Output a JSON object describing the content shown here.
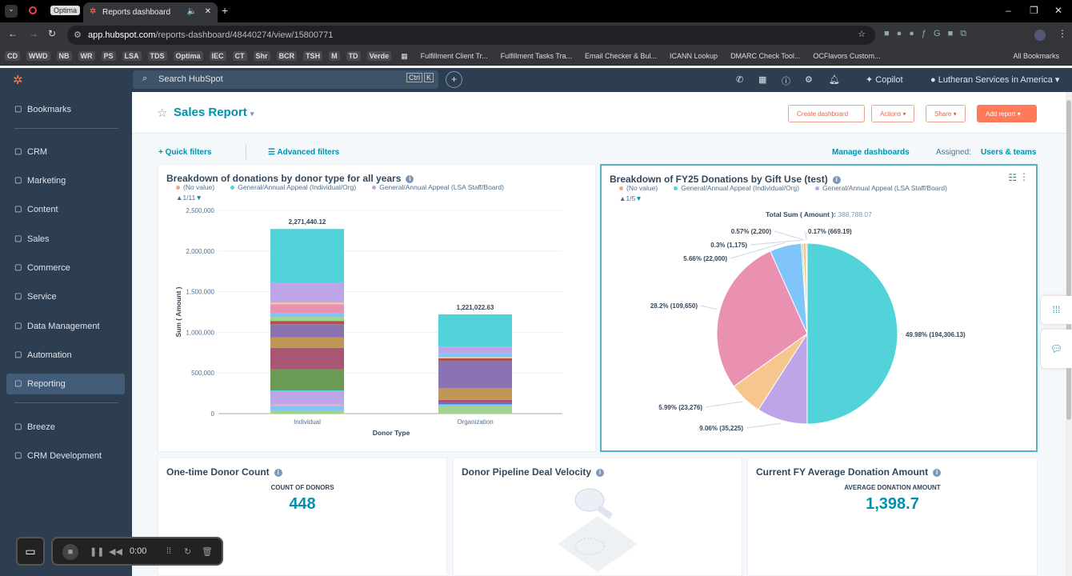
{
  "browser": {
    "group_label": "Optima",
    "tab_title": "Reports dashboard",
    "url_host": "app.hubspot.com",
    "url_path": "/reports-dashboard/48440274/view/15800771",
    "bookmarks": [
      "CD",
      "WWD",
      "NB",
      "WR",
      "PS",
      "LSA",
      "TDS",
      "Optima",
      "IEC",
      "CT",
      "Shr",
      "BCR",
      "TSH",
      "M",
      "TD",
      "Verde"
    ],
    "bookmark_links": [
      "Fulfillment Client Tr...",
      "Fulfillment Tasks Tra...",
      "Email Checker & Bul...",
      "ICANN Lookup",
      "DMARC Check Tool...",
      "OCFlavors Custom..."
    ],
    "all_bookmarks": "All Bookmarks"
  },
  "topnav": {
    "search_placeholder": "Search HubSpot",
    "kbd1": "Ctrl",
    "kbd2": "K",
    "copilot": "Copilot",
    "account": "Lutheran Services in America"
  },
  "sidebar": {
    "items": [
      {
        "label": "Bookmarks",
        "icon": "bookmark-icon"
      },
      {
        "label": "CRM",
        "icon": "crm-icon"
      },
      {
        "label": "Marketing",
        "icon": "megaphone-icon"
      },
      {
        "label": "Content",
        "icon": "content-icon"
      },
      {
        "label": "Sales",
        "icon": "sales-icon"
      },
      {
        "label": "Commerce",
        "icon": "commerce-icon"
      },
      {
        "label": "Service",
        "icon": "service-icon"
      },
      {
        "label": "Data Management",
        "icon": "database-icon"
      },
      {
        "label": "Automation",
        "icon": "automation-icon"
      },
      {
        "label": "Reporting",
        "icon": "chart-icon",
        "active": true
      },
      {
        "label": "Breeze",
        "icon": "sparkle-icon"
      },
      {
        "label": "CRM Development",
        "icon": "code-icon"
      }
    ]
  },
  "dashboard": {
    "title": "Sales Report",
    "create": "Create dashboard",
    "actions": "Actions",
    "share": "Share",
    "add_report": "Add report",
    "quick_filters": "Quick filters",
    "advanced_filters": "Advanced filters",
    "manage": "Manage dashboards",
    "assigned_label": "Assigned:",
    "assigned_value": "Users & teams"
  },
  "legend": [
    {
      "name": "(No value)",
      "color": "#f2a48c"
    },
    {
      "name": "General/Annual Appeal (Individual/Org)",
      "color": "#51d3d9"
    },
    {
      "name": "General/Annual Appeal (LSA Staff/Board)",
      "color": "#bda5e8"
    }
  ],
  "chart_data": [
    {
      "type": "bar",
      "stacked": true,
      "title": "Breakdown of donations by donor type for all years",
      "legend_page": "1/11",
      "xlabel": "Donor Type",
      "ylabel": "Sum ( Amount )",
      "ylim": [
        0,
        2500000
      ],
      "yticks": [
        "0",
        "500,000",
        "1,000,000",
        "1,500,000",
        "2,000,000",
        "2,500,000"
      ],
      "categories": [
        "Individual",
        "Organization"
      ],
      "totals": [
        "2,271,440.12",
        "1,221,022.63"
      ],
      "grid": true,
      "stacks": [
        [
          {
            "v": 40000,
            "c": "#a2d28f"
          },
          {
            "v": 55000,
            "c": "#7fc4fa"
          },
          {
            "v": 20000,
            "c": "#eaa9c0"
          },
          {
            "v": 160000,
            "c": "#bda5e8"
          },
          {
            "v": 10000,
            "c": "#51d3d9"
          },
          {
            "v": 260000,
            "c": "#6a9a56"
          },
          {
            "v": 265000,
            "c": "#a85673"
          },
          {
            "v": 130000,
            "c": "#c09659"
          },
          {
            "v": 160000,
            "c": "#8a72b3"
          },
          {
            "v": 40000,
            "c": "#b0524a"
          },
          {
            "v": 50000,
            "c": "#a2d28f"
          },
          {
            "v": 50000,
            "c": "#7fc4fa"
          },
          {
            "v": 105000,
            "c": "#ea90b1"
          },
          {
            "v": 20000,
            "c": "#f5c78e"
          },
          {
            "v": 245000,
            "c": "#bda5e8"
          },
          {
            "v": 661440.12,
            "c": "#51d3d9"
          }
        ],
        [
          {
            "v": 90000,
            "c": "#a2d28f"
          },
          {
            "v": 25000,
            "c": "#7fc4fa"
          },
          {
            "v": 20000,
            "c": "#4c6ec7"
          },
          {
            "v": 35000,
            "c": "#a85673"
          },
          {
            "v": 145000,
            "c": "#c09659"
          },
          {
            "v": 335000,
            "c": "#8a72b3"
          },
          {
            "v": 30000,
            "c": "#b0524a"
          },
          {
            "v": 15000,
            "c": "#f5c78e"
          },
          {
            "v": 50000,
            "c": "#7fc4fa"
          },
          {
            "v": 75000,
            "c": "#bda5e8"
          },
          {
            "v": 401022.63,
            "c": "#51d3d9"
          }
        ]
      ]
    },
    {
      "type": "pie",
      "title": "Breakdown of FY25 Donations by Gift Use (test)",
      "legend_page": "1/5",
      "total_label": "Total Sum ( Amount ):",
      "total": "388,788.07",
      "slices": [
        {
          "value": 194306.13,
          "label": "49.98% (194,306.13)",
          "color": "#51d3d9"
        },
        {
          "value": 35225,
          "label": "9.06% (35,225)",
          "color": "#bda5e8"
        },
        {
          "value": 23276,
          "label": "5.99% (23,276)",
          "color": "#f5c78e"
        },
        {
          "value": 109650,
          "label": "28.2% (109,650)",
          "color": "#ea90b1"
        },
        {
          "value": 22000,
          "label": "5.66% (22,000)",
          "color": "#7fc4fa"
        },
        {
          "value": 1175,
          "label": "0.3% (1,175)",
          "color": "#a2d28f"
        },
        {
          "value": 2200,
          "label": "0.57% (2,200)",
          "color": "#f5c78e"
        },
        {
          "value": 669.19,
          "label": "0.17% (669.19)",
          "color": "#b0524a"
        }
      ]
    }
  ],
  "kpis": [
    {
      "title": "One-time Donor Count",
      "label": "COUNT OF DONORS",
      "value": "448"
    },
    {
      "title": "Donor Pipeline Deal Velocity"
    },
    {
      "title": "Current FY Average Donation Amount",
      "label": "AVERAGE DONATION AMOUNT",
      "value": "1,398.7"
    }
  ],
  "recorder": {
    "time": "0:00"
  }
}
